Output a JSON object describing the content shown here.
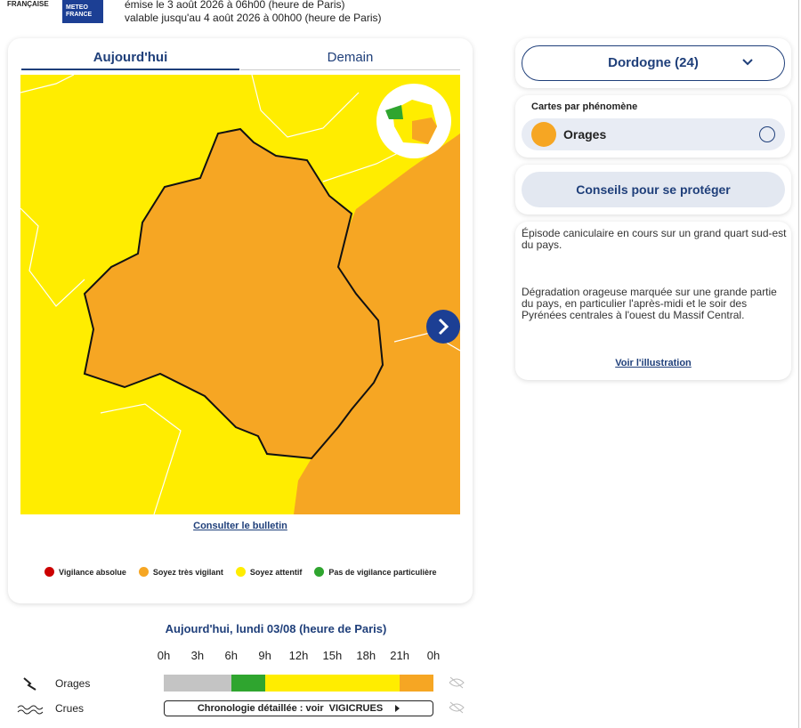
{
  "header": {
    "logo_top": "FRANÇAISE",
    "logo_brand": "METEO FRANCE",
    "issued": "émise le 3 août 2026 à 06h00 (heure de Paris)",
    "valid": "valable jusqu'au 4 août 2026 à 00h00 (heure de Paris)"
  },
  "tabs": [
    "Aujourd'hui",
    "Demain"
  ],
  "map": {
    "bulletin_link": "Consulter le bulletin"
  },
  "legend": [
    {
      "label": "Vigilance absolue",
      "color": "#cc0000"
    },
    {
      "label": "Soyez très vigilant",
      "color": "#f6a623"
    },
    {
      "label": "Soyez attentif",
      "color": "#ffed00"
    },
    {
      "label": "Pas de vigilance particulière",
      "color": "#2fa52f"
    }
  ],
  "timeline": {
    "title": "Aujourd'hui, lundi 03/08 (heure de Paris)",
    "hours": [
      "0h",
      "3h",
      "6h",
      "9h",
      "12h",
      "15h",
      "18h",
      "21h",
      "0h"
    ],
    "rows": [
      {
        "label": "Orages",
        "segments": [
          {
            "start": 0,
            "end": 6,
            "color": "#c4c4c4"
          },
          {
            "start": 6,
            "end": 9,
            "color": "#2fa52f"
          },
          {
            "start": 9,
            "end": 21,
            "color": "#ffed00"
          },
          {
            "start": 21,
            "end": 24,
            "color": "#f6a623"
          }
        ]
      },
      {
        "label": "Crues",
        "link_text": "Chronologie détaillée : voir",
        "link_brand": "VIGICRUES"
      }
    ]
  },
  "sidebar": {
    "department": "Dordogne (24)",
    "maps_title": "Cartes par phénomène",
    "phenomenon": "Orages",
    "advice_button": "Conseils pour se protéger",
    "paragraphs": [
      "Épisode caniculaire en cours sur un grand quart sud-est du pays.",
      "Dégradation orageuse marquée sur une grande partie du pays, en particulier l'après-midi et le soir des Pyrénées centrales à l'ouest du Massif Central."
    ],
    "illustration_link": "Voir l'illustration"
  }
}
